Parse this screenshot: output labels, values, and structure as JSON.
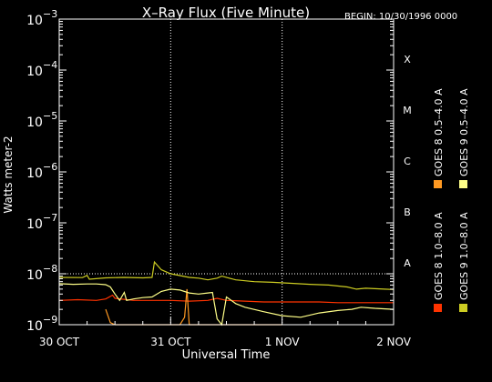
{
  "chart_data": {
    "type": "line",
    "title": "X–Ray Flux (Five Minute)",
    "begin_label": "BEGIN: 10/30/1996 0000",
    "xlabel": "Universal Time",
    "ylabel": "Watts meter-2",
    "y_scale": "log",
    "ylim": [
      1e-09,
      0.001
    ],
    "xlim": [
      0,
      72
    ],
    "x_ticks": [
      {
        "value": 0,
        "label": "30 OCT"
      },
      {
        "value": 24,
        "label": "31 OCT"
      },
      {
        "value": 48,
        "label": "1 NOV"
      },
      {
        "value": 72,
        "label": "2 NOV"
      }
    ],
    "y_ticks": [
      {
        "exp": -9,
        "label": "10",
        "sup": "−9"
      },
      {
        "exp": -8,
        "label": "10",
        "sup": "−8"
      },
      {
        "exp": -7,
        "label": "10",
        "sup": "−7"
      },
      {
        "exp": -6,
        "label": "10",
        "sup": "−6"
      },
      {
        "exp": -5,
        "label": "10",
        "sup": "−5"
      },
      {
        "exp": -4,
        "label": "10",
        "sup": "−4"
      },
      {
        "exp": -3,
        "label": "10",
        "sup": "−3"
      }
    ],
    "flare_classes": [
      {
        "label": "X",
        "exp": -4
      },
      {
        "label": "M",
        "exp": -5
      },
      {
        "label": "C",
        "exp": -6
      },
      {
        "label": "B",
        "exp": -7
      },
      {
        "label": "A",
        "exp": -8
      }
    ],
    "grid": "dotted vertical at day boundaries, horizontal at 1e-8",
    "legend_placement": "right, rotated",
    "series": [
      {
        "name": "GOES 8 1.0–8.0 A",
        "color": "#ff3300",
        "points": [
          [
            0,
            3e-09
          ],
          [
            4,
            3.1e-09
          ],
          [
            8,
            3e-09
          ],
          [
            10,
            3.2e-09
          ],
          [
            11.5,
            3.8e-09
          ],
          [
            12,
            3.3e-09
          ],
          [
            16,
            3e-09
          ],
          [
            20,
            3e-09
          ],
          [
            24,
            3e-09
          ],
          [
            28,
            2.9e-09
          ],
          [
            32,
            3e-09
          ],
          [
            34,
            3.3e-09
          ],
          [
            36,
            3e-09
          ],
          [
            40,
            2.9e-09
          ],
          [
            44,
            2.8e-09
          ],
          [
            48,
            2.8e-09
          ],
          [
            52,
            2.8e-09
          ],
          [
            56,
            2.8e-09
          ],
          [
            60,
            2.7e-09
          ],
          [
            64,
            2.7e-09
          ],
          [
            68,
            2.7e-09
          ],
          [
            72,
            2.7e-09
          ]
        ]
      },
      {
        "name": "GOES 8 0.5–4.0 A",
        "color": "#ff9922",
        "points": [
          [
            10,
            2e-09
          ],
          [
            11,
            1.1e-09
          ],
          [
            12,
            1e-09
          ],
          [
            14,
            1e-09
          ],
          [
            17,
            1e-09
          ],
          [
            20,
            1e-09
          ],
          [
            24,
            1e-09
          ],
          [
            26,
            1e-09
          ],
          [
            27,
            1.4e-09
          ],
          [
            27.5,
            5e-09
          ],
          [
            28,
            1e-09
          ],
          [
            29,
            1e-09
          ],
          [
            30,
            1e-09
          ],
          [
            31,
            1e-09
          ],
          [
            34,
            1e-09
          ],
          [
            36,
            1e-09
          ],
          [
            40,
            1e-09
          ],
          [
            44,
            1e-09
          ],
          [
            48,
            1e-09
          ]
        ]
      },
      {
        "name": "GOES 9 1.0–8.0 A",
        "color": "#cccc22",
        "points": [
          [
            0,
            8.5e-09
          ],
          [
            5,
            8.4e-09
          ],
          [
            6,
            9.3e-09
          ],
          [
            6.5,
            7.8e-09
          ],
          [
            10,
            8.3e-09
          ],
          [
            14,
            8.5e-09
          ],
          [
            18,
            8.3e-09
          ],
          [
            20,
            8.5e-09
          ],
          [
            20.5,
            1.7e-08
          ],
          [
            22,
            1.2e-08
          ],
          [
            24,
            1e-08
          ],
          [
            26,
            9.2e-09
          ],
          [
            28,
            8.5e-09
          ],
          [
            30,
            8.2e-09
          ],
          [
            32,
            7.6e-09
          ],
          [
            34,
            8.2e-09
          ],
          [
            35,
            9e-09
          ],
          [
            38,
            7.6e-09
          ],
          [
            42,
            7e-09
          ],
          [
            46,
            6.8e-09
          ],
          [
            50,
            6.5e-09
          ],
          [
            54,
            6.2e-09
          ],
          [
            58,
            6e-09
          ],
          [
            62,
            5.5e-09
          ],
          [
            64,
            5e-09
          ],
          [
            66,
            5.2e-09
          ],
          [
            70,
            5e-09
          ],
          [
            72,
            4.9e-09
          ]
        ]
      },
      {
        "name": "GOES 9 0.5–4.0 A",
        "color": "#ffff88",
        "points": [
          [
            0,
            6.4e-09
          ],
          [
            3,
            6.2e-09
          ],
          [
            6,
            6.3e-09
          ],
          [
            8,
            6.3e-09
          ],
          [
            10,
            6.1e-09
          ],
          [
            11,
            5.5e-09
          ],
          [
            12,
            4e-09
          ],
          [
            13,
            3e-09
          ],
          [
            14,
            4.3e-09
          ],
          [
            14.5,
            3e-09
          ],
          [
            16,
            3.2e-09
          ],
          [
            18,
            3.4e-09
          ],
          [
            20,
            3.5e-09
          ],
          [
            22,
            4.5e-09
          ],
          [
            24,
            5e-09
          ],
          [
            26,
            4.8e-09
          ],
          [
            28,
            4.2e-09
          ],
          [
            30,
            4e-09
          ],
          [
            32,
            4.2e-09
          ],
          [
            33,
            4.3e-09
          ],
          [
            34,
            1.3e-09
          ],
          [
            35,
            1e-09
          ],
          [
            36,
            3.5e-09
          ],
          [
            38,
            2.6e-09
          ],
          [
            40,
            2.2e-09
          ],
          [
            44,
            1.8e-09
          ],
          [
            48,
            1.5e-09
          ],
          [
            52,
            1.4e-09
          ],
          [
            56,
            1.7e-09
          ],
          [
            60,
            1.9e-09
          ],
          [
            63,
            2e-09
          ],
          [
            65,
            2.2e-09
          ],
          [
            68,
            2.1e-09
          ],
          [
            72,
            2e-09
          ]
        ]
      }
    ]
  }
}
